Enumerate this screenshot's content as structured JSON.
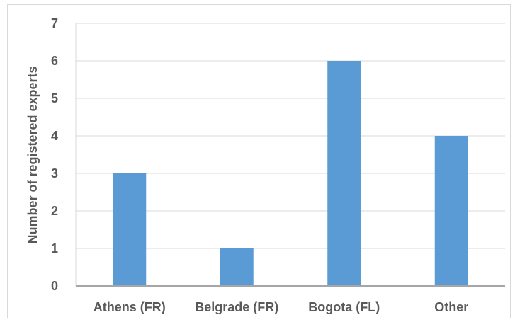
{
  "chart_data": {
    "type": "bar",
    "title": "",
    "xlabel": "",
    "ylabel": "Number of registered experts",
    "categories": [
      "Athens (FR)",
      "Belgrade (FR)",
      "Bogota (FL)",
      "Other"
    ],
    "values": [
      3,
      1,
      6,
      4
    ],
    "ylim": [
      0,
      7
    ],
    "yticks": [
      "0",
      "1",
      "2",
      "3",
      "4",
      "5",
      "6",
      "7"
    ],
    "grid": true,
    "legend": "none",
    "bar_color": "#5b9bd5",
    "grid_color": "#d9d9d9",
    "axis_color": "#a6a6a6",
    "text_color": "#595959"
  }
}
